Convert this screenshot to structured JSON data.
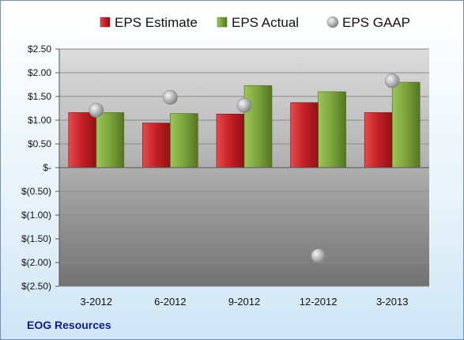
{
  "company": "EOG Resources",
  "chart_data": {
    "type": "bar",
    "categories": [
      "3-2012",
      "6-2012",
      "9-2012",
      "12-2012",
      "3-2013"
    ],
    "series": [
      {
        "name": "EPS Estimate",
        "kind": "bar",
        "color": "#c0202a",
        "values": [
          1.16,
          0.94,
          1.13,
          1.37,
          1.16
        ]
      },
      {
        "name": "EPS Actual",
        "kind": "bar",
        "color": "#7aa33a",
        "values": [
          1.16,
          1.14,
          1.73,
          1.6,
          1.8
        ]
      },
      {
        "name": "EPS GAAP",
        "kind": "marker",
        "color": "#a9a9a9",
        "values": [
          1.21,
          1.48,
          1.31,
          -1.86,
          1.83
        ]
      }
    ],
    "yticks": [
      2.5,
      2.0,
      1.5,
      1.0,
      0.5,
      0,
      -0.5,
      -1.0,
      -1.5,
      -2.0,
      -2.5
    ],
    "ytick_labels": [
      "$2.50",
      "$2.00",
      "$1.50",
      "$1.00",
      "$0.50",
      "$-",
      "$(0.50)",
      "$(1.00)",
      "$(1.50)",
      "$(2.00)",
      "$(2.50)"
    ],
    "ylim": [
      -2.5,
      2.5
    ],
    "grid": true,
    "legend_position": "top"
  }
}
